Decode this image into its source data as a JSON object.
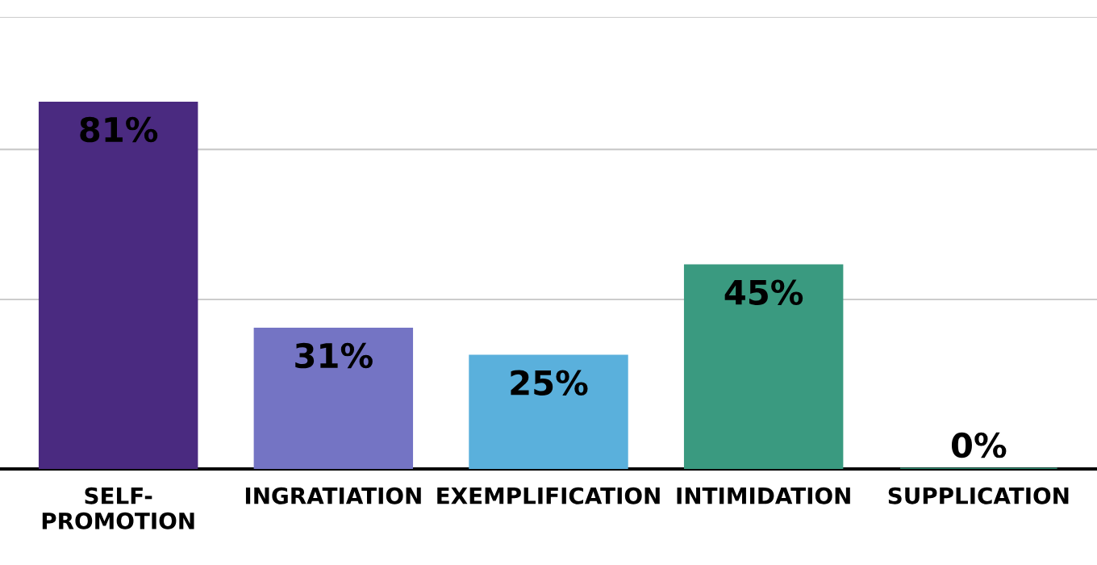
{
  "chart_data": {
    "type": "bar",
    "categories": [
      "SELF-\nPROMOTION",
      "INGRATIATION",
      "EXEMPLIFICATION",
      "INTIMIDATION",
      "SUPPLICATION"
    ],
    "values": [
      81,
      31,
      25,
      45,
      0
    ],
    "colors": [
      "#4a2a80",
      "#7474c4",
      "#5ab0dc",
      "#3a9a80",
      "#2e8a70"
    ],
    "value_labels": [
      "81%",
      "31%",
      "25%",
      "45%",
      "0%"
    ],
    "ref_lines": [
      {
        "axis": "y",
        "value": 37.5,
        "color": "#cccccc"
      },
      {
        "axis": "y",
        "value": 70.7,
        "color": "#cccccc"
      },
      {
        "axis": "y",
        "value": 100,
        "color": "#cccccc"
      }
    ],
    "tick_labels": "x"
  }
}
